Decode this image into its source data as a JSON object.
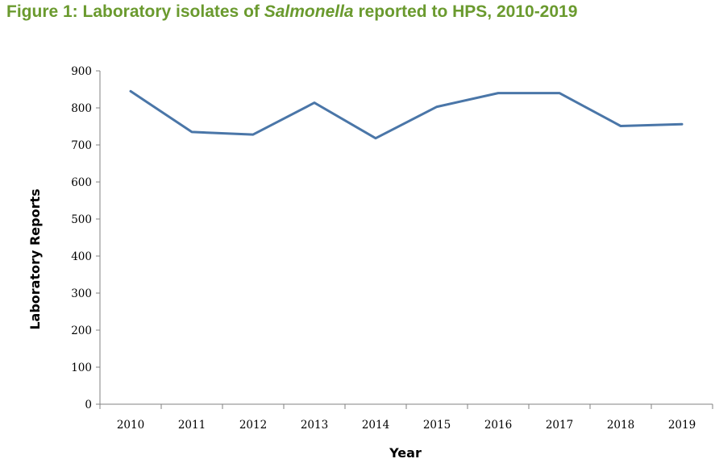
{
  "figure": {
    "title_prefix": "Figure 1: Laboratory isolates of ",
    "title_italic": "Salmonella",
    "title_suffix": " reported to HPS, 2010-2019"
  },
  "chart_data": {
    "type": "line",
    "title": "Figure 1: Laboratory isolates of Salmonella reported to HPS, 2010-2019",
    "xlabel": "Year",
    "ylabel": "Laboratory Reports",
    "categories": [
      "2010",
      "2011",
      "2012",
      "2013",
      "2014",
      "2015",
      "2016",
      "2017",
      "2018",
      "2019"
    ],
    "series": [
      {
        "name": "Laboratory Reports",
        "values": [
          845,
          735,
          728,
          814,
          718,
          803,
          840,
          840,
          751,
          756
        ]
      }
    ],
    "ylim": [
      0,
      900
    ],
    "yticks": [
      "0",
      "100",
      "200",
      "300",
      "400",
      "500",
      "600",
      "700",
      "800",
      "900"
    ],
    "grid": false,
    "colors": {
      "line": "#4a76a8",
      "title": "#6a9a2e",
      "axis": "#808080"
    }
  }
}
